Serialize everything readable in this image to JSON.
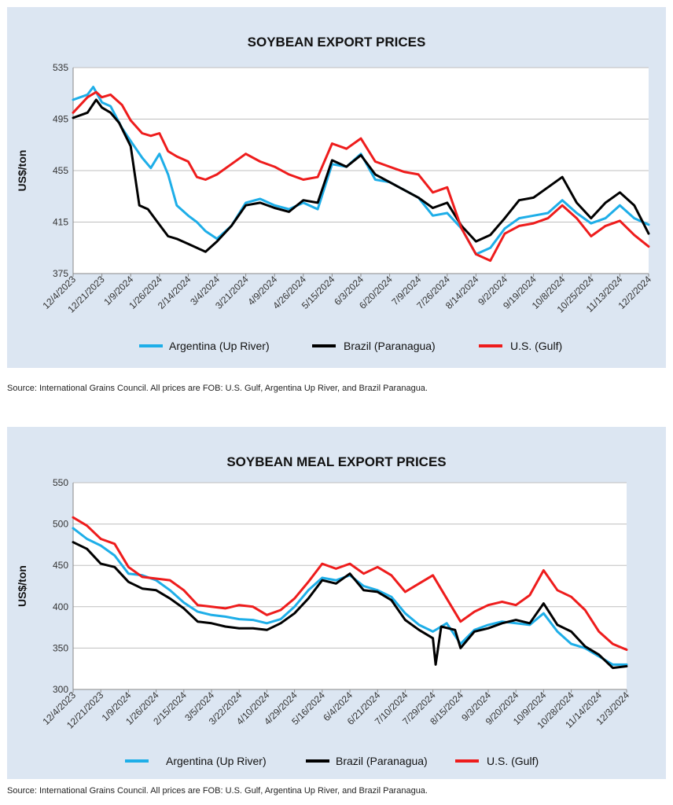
{
  "charts": [
    {
      "source": "Source: International Grains Council. All prices are FOB: U.S. Gulf, Argentina Up River, and Brazil Paranagua."
    },
    {
      "source": "Source: International Grains Council. All prices are FOB: U.S. Gulf, Argentina Up River, and Brazil Paranagua."
    }
  ],
  "chart_data": [
    {
      "type": "line",
      "title": "SOYBEAN EXPORT PRICES",
      "xlabel": "",
      "ylabel": "US$/ton",
      "ylim": [
        375,
        535
      ],
      "yticks": [
        375,
        415,
        455,
        495,
        535
      ],
      "grid": true,
      "legend": "bottom",
      "categories": [
        "12/4/2023",
        "12/21/2023",
        "1/9/2024",
        "1/26/2024",
        "2/14/2024",
        "3/4/2024",
        "3/21/2024",
        "4/9/2024",
        "4/26/2024",
        "5/15/2024",
        "6/3/2024",
        "6/20/2024",
        "7/9/2024",
        "7/26/2024",
        "8/14/2024",
        "9/2/2024",
        "9/19/2024",
        "10/8/2024",
        "10/25/2024",
        "11/13/2024",
        "12/2/2024"
      ],
      "series": [
        {
          "name": "Argentina (Up River)",
          "color": "#1eaee8",
          "values": [
            [
              0,
              510
            ],
            [
              0.5,
              514
            ],
            [
              0.7,
              520
            ],
            [
              1,
              508
            ],
            [
              1.3,
              505
            ],
            [
              1.7,
              488
            ],
            [
              2,
              478
            ],
            [
              2.4,
              465
            ],
            [
              2.7,
              457
            ],
            [
              3,
              468
            ],
            [
              3.3,
              452
            ],
            [
              3.6,
              428
            ],
            [
              4,
              420
            ],
            [
              4.3,
              415
            ],
            [
              4.6,
              408
            ],
            [
              5,
              402
            ],
            [
              5.5,
              412
            ],
            [
              6,
              430
            ],
            [
              6.5,
              433
            ],
            [
              7,
              428
            ],
            [
              7.5,
              425
            ],
            [
              8,
              430
            ],
            [
              8.5,
              425
            ],
            [
              9,
              460
            ],
            [
              9.5,
              458
            ],
            [
              10,
              468
            ],
            [
              10.5,
              448
            ],
            [
              11,
              446
            ],
            [
              11.5,
              440
            ],
            [
              12,
              434
            ],
            [
              12.5,
              420
            ],
            [
              13,
              422
            ],
            [
              13.5,
              410
            ],
            [
              14,
              390
            ],
            [
              14.5,
              395
            ],
            [
              15,
              410
            ],
            [
              15.5,
              418
            ],
            [
              16,
              420
            ],
            [
              16.5,
              422
            ],
            [
              17,
              432
            ],
            [
              17.5,
              422
            ],
            [
              18,
              414
            ],
            [
              18.5,
              418
            ],
            [
              19,
              428
            ],
            [
              19.5,
              418
            ],
            [
              20,
              413
            ]
          ]
        },
        {
          "name": "Brazil (Paranagua)",
          "color": "#000000",
          "values": [
            [
              0,
              496
            ],
            [
              0.5,
              500
            ],
            [
              0.8,
              510
            ],
            [
              1,
              504
            ],
            [
              1.3,
              500
            ],
            [
              1.6,
              492
            ],
            [
              2,
              474
            ],
            [
              2.3,
              428
            ],
            [
              2.6,
              425
            ],
            [
              2.9,
              416
            ],
            [
              3.3,
              404
            ],
            [
              3.6,
              402
            ],
            [
              4,
              398
            ],
            [
              4.3,
              395
            ],
            [
              4.6,
              392
            ],
            [
              5,
              400
            ],
            [
              5.5,
              412
            ],
            [
              6,
              428
            ],
            [
              6.5,
              430
            ],
            [
              7,
              426
            ],
            [
              7.5,
              423
            ],
            [
              8,
              432
            ],
            [
              8.5,
              430
            ],
            [
              9,
              463
            ],
            [
              9.5,
              458
            ],
            [
              10,
              467
            ],
            [
              10.5,
              452
            ],
            [
              11,
              446
            ],
            [
              11.5,
              440
            ],
            [
              12,
              434
            ],
            [
              12.5,
              426
            ],
            [
              13,
              430
            ],
            [
              13.5,
              412
            ],
            [
              14,
              400
            ],
            [
              14.5,
              405
            ],
            [
              15,
              418
            ],
            [
              15.5,
              432
            ],
            [
              16,
              434
            ],
            [
              16.5,
              442
            ],
            [
              17,
              450
            ],
            [
              17.5,
              430
            ],
            [
              18,
              418
            ],
            [
              18.5,
              430
            ],
            [
              19,
              438
            ],
            [
              19.5,
              428
            ],
            [
              20,
              406
            ]
          ]
        },
        {
          "name": "U.S. (Gulf)",
          "color": "#ee1c1c",
          "values": [
            [
              0,
              500
            ],
            [
              0.5,
              512
            ],
            [
              0.8,
              516
            ],
            [
              1,
              512
            ],
            [
              1.3,
              514
            ],
            [
              1.7,
              506
            ],
            [
              2,
              494
            ],
            [
              2.4,
              484
            ],
            [
              2.7,
              482
            ],
            [
              3,
              484
            ],
            [
              3.3,
              470
            ],
            [
              3.6,
              466
            ],
            [
              4,
              462
            ],
            [
              4.3,
              450
            ],
            [
              4.6,
              448
            ],
            [
              5,
              452
            ],
            [
              5.5,
              460
            ],
            [
              6,
              468
            ],
            [
              6.5,
              462
            ],
            [
              7,
              458
            ],
            [
              7.5,
              452
            ],
            [
              8,
              448
            ],
            [
              8.5,
              450
            ],
            [
              9,
              476
            ],
            [
              9.5,
              472
            ],
            [
              10,
              480
            ],
            [
              10.5,
              462
            ],
            [
              11,
              458
            ],
            [
              11.5,
              454
            ],
            [
              12,
              452
            ],
            [
              12.5,
              438
            ],
            [
              13,
              442
            ],
            [
              13.5,
              410
            ],
            [
              14,
              390
            ],
            [
              14.5,
              385
            ],
            [
              15,
              406
            ],
            [
              15.5,
              412
            ],
            [
              16,
              414
            ],
            [
              16.5,
              418
            ],
            [
              17,
              428
            ],
            [
              17.5,
              418
            ],
            [
              18,
              404
            ],
            [
              18.5,
              412
            ],
            [
              19,
              416
            ],
            [
              19.5,
              405
            ],
            [
              20,
              396
            ]
          ]
        }
      ]
    },
    {
      "type": "line",
      "title": "SOYBEAN MEAL EXPORT PRICES",
      "xlabel": "",
      "ylabel": "US$/ton",
      "ylim": [
        300,
        550
      ],
      "yticks": [
        300,
        350,
        400,
        450,
        500,
        550
      ],
      "grid": true,
      "legend": "bottom",
      "categories": [
        "12/4/2023",
        "12/21/2023",
        "1/9/2024",
        "1/26/2024",
        "2/15/2024",
        "3/5/2024",
        "3/22/2024",
        "4/10/2024",
        "4/29/2024",
        "5/16/2024",
        "6/4/2024",
        "6/21/2024",
        "7/10/2024",
        "7/29/2024",
        "8/15/2024",
        "9/3/2024",
        "9/20/2024",
        "10/9/2024",
        "10/28/2024",
        "11/14/2024",
        "12/3/2024"
      ],
      "series": [
        {
          "name": "Argentina (Up River)",
          "color": "#1eaee8",
          "values": [
            [
              0,
              495
            ],
            [
              0.5,
              482
            ],
            [
              1,
              474
            ],
            [
              1.5,
              462
            ],
            [
              2,
              440
            ],
            [
              2.5,
              438
            ],
            [
              3,
              432
            ],
            [
              3.5,
              420
            ],
            [
              4,
              405
            ],
            [
              4.5,
              394
            ],
            [
              5,
              390
            ],
            [
              5.5,
              388
            ],
            [
              6,
              385
            ],
            [
              6.5,
              384
            ],
            [
              7,
              380
            ],
            [
              7.5,
              385
            ],
            [
              8,
              400
            ],
            [
              8.5,
              420
            ],
            [
              9,
              435
            ],
            [
              9.5,
              432
            ],
            [
              10,
              438
            ],
            [
              10.5,
              425
            ],
            [
              11,
              420
            ],
            [
              11.5,
              412
            ],
            [
              12,
              392
            ],
            [
              12.5,
              378
            ],
            [
              13,
              370
            ],
            [
              13.5,
              380
            ],
            [
              14,
              355
            ],
            [
              14.5,
              372
            ],
            [
              15,
              378
            ],
            [
              15.5,
              382
            ],
            [
              16,
              380
            ],
            [
              16.5,
              378
            ],
            [
              17,
              392
            ],
            [
              17.5,
              370
            ],
            [
              18,
              355
            ],
            [
              18.5,
              350
            ],
            [
              19,
              340
            ],
            [
              19.5,
              330
            ],
            [
              20,
              330
            ]
          ]
        },
        {
          "name": "Brazil (Paranagua)",
          "color": "#000000",
          "values": [
            [
              0,
              478
            ],
            [
              0.5,
              470
            ],
            [
              1,
              452
            ],
            [
              1.5,
              448
            ],
            [
              2,
              430
            ],
            [
              2.5,
              422
            ],
            [
              3,
              420
            ],
            [
              3.5,
              410
            ],
            [
              4,
              398
            ],
            [
              4.5,
              382
            ],
            [
              5,
              380
            ],
            [
              5.5,
              376
            ],
            [
              6,
              374
            ],
            [
              6.5,
              374
            ],
            [
              7,
              372
            ],
            [
              7.5,
              380
            ],
            [
              8,
              392
            ],
            [
              8.5,
              410
            ],
            [
              9,
              432
            ],
            [
              9.5,
              428
            ],
            [
              10,
              440
            ],
            [
              10.5,
              420
            ],
            [
              11,
              418
            ],
            [
              11.5,
              408
            ],
            [
              12,
              384
            ],
            [
              12.5,
              372
            ],
            [
              13,
              362
            ],
            [
              13.1,
              330
            ],
            [
              13.3,
              376
            ],
            [
              13.8,
              372
            ],
            [
              14,
              350
            ],
            [
              14.5,
              370
            ],
            [
              15,
              374
            ],
            [
              15.5,
              380
            ],
            [
              16,
              384
            ],
            [
              16.5,
              380
            ],
            [
              17,
              404
            ],
            [
              17.5,
              378
            ],
            [
              18,
              370
            ],
            [
              18.5,
              352
            ],
            [
              19,
              342
            ],
            [
              19.5,
              326
            ],
            [
              20,
              328
            ]
          ]
        },
        {
          "name": "U.S. (Gulf)",
          "color": "#ee1c1c",
          "values": [
            [
              0,
              508
            ],
            [
              0.5,
              498
            ],
            [
              1,
              482
            ],
            [
              1.5,
              476
            ],
            [
              2,
              448
            ],
            [
              2.5,
              436
            ],
            [
              3,
              434
            ],
            [
              3.5,
              432
            ],
            [
              4,
              420
            ],
            [
              4.5,
              402
            ],
            [
              5,
              400
            ],
            [
              5.5,
              398
            ],
            [
              6,
              402
            ],
            [
              6.5,
              400
            ],
            [
              7,
              390
            ],
            [
              7.5,
              396
            ],
            [
              8,
              410
            ],
            [
              8.5,
              430
            ],
            [
              9,
              452
            ],
            [
              9.5,
              446
            ],
            [
              10,
              452
            ],
            [
              10.5,
              440
            ],
            [
              11,
              448
            ],
            [
              11.5,
              438
            ],
            [
              12,
              418
            ],
            [
              12.5,
              428
            ],
            [
              13,
              438
            ],
            [
              13.5,
              410
            ],
            [
              14,
              382
            ],
            [
              14.5,
              394
            ],
            [
              15,
              402
            ],
            [
              15.5,
              406
            ],
            [
              16,
              402
            ],
            [
              16.5,
              414
            ],
            [
              17,
              444
            ],
            [
              17.5,
              420
            ],
            [
              18,
              412
            ],
            [
              18.5,
              396
            ],
            [
              19,
              370
            ],
            [
              19.5,
              355
            ],
            [
              20,
              348
            ]
          ]
        }
      ]
    }
  ]
}
